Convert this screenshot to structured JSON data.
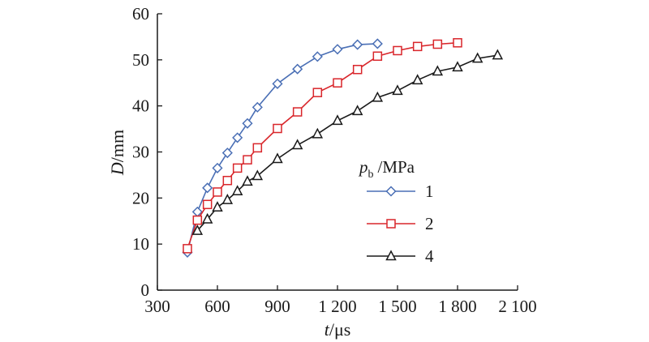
{
  "chart_data": {
    "type": "line",
    "xlabel_var": "t",
    "xlabel_unit": "/μs",
    "ylabel_var": "D",
    "ylabel_unit": "/mm",
    "xlim": [
      300,
      2100
    ],
    "ylim": [
      0,
      60
    ],
    "x_ticks": [
      300,
      600,
      900,
      1200,
      1500,
      1800,
      2100
    ],
    "x_tick_labels": [
      "300",
      "600",
      "900",
      "1 200",
      "1 500",
      "1 800",
      "2 100"
    ],
    "y_ticks": [
      0,
      10,
      20,
      30,
      40,
      50,
      60
    ],
    "y_tick_labels": [
      "0",
      "10",
      "20",
      "30",
      "40",
      "50",
      "60"
    ],
    "grid": false,
    "legend": {
      "title_var": "p",
      "title_sub": "b",
      "title_unit": "/MPa",
      "position": "right-middle"
    },
    "series": [
      {
        "name": "1",
        "color": "#4a6fb5",
        "marker": "diamond",
        "x": [
          450,
          500,
          550,
          600,
          650,
          700,
          750,
          800,
          900,
          1000,
          1100,
          1200,
          1300,
          1400
        ],
        "y": [
          8.2,
          17,
          22.2,
          26.5,
          29.8,
          33.1,
          36.2,
          39.7,
          44.8,
          48,
          50.7,
          52.3,
          53.3,
          53.5
        ]
      },
      {
        "name": "2",
        "color": "#d9262b",
        "marker": "square",
        "x": [
          450,
          500,
          550,
          600,
          650,
          700,
          750,
          800,
          900,
          1000,
          1100,
          1200,
          1300,
          1400,
          1500,
          1600,
          1700,
          1800
        ],
        "y": [
          9,
          15.2,
          18.6,
          21.3,
          23.8,
          26.5,
          28.3,
          30.9,
          35.1,
          38.7,
          42.9,
          45,
          47.9,
          50.8,
          52,
          52.9,
          53.4,
          53.7
        ]
      },
      {
        "name": "4",
        "color": "#1a1a1a",
        "marker": "triangle",
        "x": [
          500,
          550,
          600,
          650,
          700,
          750,
          800,
          900,
          1000,
          1100,
          1200,
          1300,
          1400,
          1500,
          1600,
          1700,
          1800,
          1900,
          2000
        ],
        "y": [
          12.9,
          15.4,
          18,
          19.6,
          21.5,
          23.6,
          24.8,
          28.5,
          31.5,
          33.9,
          36.8,
          38.9,
          41.8,
          43.3,
          45.6,
          47.5,
          48.4,
          50.3,
          51
        ]
      }
    ]
  }
}
